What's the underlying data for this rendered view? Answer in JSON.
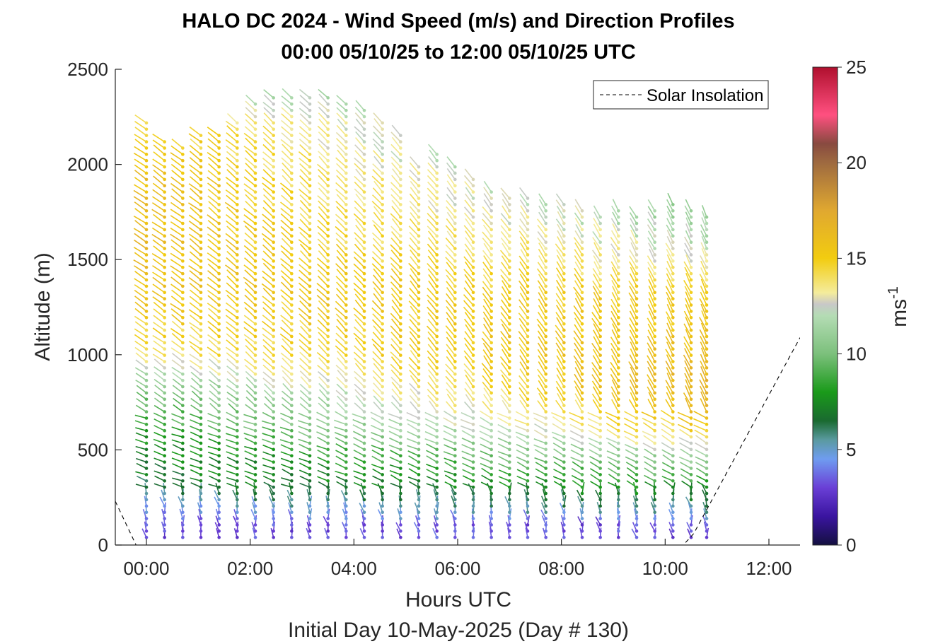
{
  "chart_data": {
    "type": "wind-barb-profile",
    "title": "HALO DC 2024 - Wind Speed (m/s) and Direction Profiles",
    "subtitle": "00:00 05/10/25 to 12:00 05/10/25  UTC",
    "xlabel": "Hours UTC",
    "footer": "Initial Day 10-May-2025 (Day # 130)",
    "ylabel": "Altitude (m)",
    "xlim": [
      -0.6,
      12.6
    ],
    "ylim": [
      0,
      2500
    ],
    "x_ticks": [
      0,
      2,
      4,
      6,
      8,
      10,
      12
    ],
    "x_tick_labels": [
      "00:00",
      "02:00",
      "04:00",
      "06:00",
      "08:00",
      "10:00",
      "12:00"
    ],
    "y_ticks": [
      0,
      500,
      1000,
      1500,
      2000,
      2500
    ],
    "y_tick_labels": [
      "0",
      "500",
      "1000",
      "1500",
      "2000",
      "2500"
    ],
    "colorbar": {
      "label": "ms-1",
      "label_main": "ms",
      "label_sup": "-1",
      "range": [
        0,
        25
      ],
      "ticks": [
        0,
        5,
        10,
        15,
        20,
        25
      ],
      "tick_labels": [
        "0",
        "5",
        "10",
        "15",
        "20",
        "25"
      ],
      "stops": [
        {
          "v": 0,
          "c": "#141040"
        },
        {
          "v": 1.5,
          "c": "#3a14a0"
        },
        {
          "v": 3,
          "c": "#6a3fd6"
        },
        {
          "v": 4.5,
          "c": "#6f9cf0"
        },
        {
          "v": 5.5,
          "c": "#5a9aa0"
        },
        {
          "v": 6.5,
          "c": "#1a6a30"
        },
        {
          "v": 8,
          "c": "#1a9a1a"
        },
        {
          "v": 10,
          "c": "#7cc07c"
        },
        {
          "v": 12,
          "c": "#b4dcb4"
        },
        {
          "v": 12.6,
          "c": "#c8c8c8"
        },
        {
          "v": 13.2,
          "c": "#f4ec9c"
        },
        {
          "v": 15,
          "c": "#f2cc10"
        },
        {
          "v": 17.5,
          "c": "#e0a830"
        },
        {
          "v": 20,
          "c": "#9e6a40"
        },
        {
          "v": 21,
          "c": "#884a40"
        },
        {
          "v": 22.5,
          "c": "#ff5080"
        },
        {
          "v": 25,
          "c": "#b0102e"
        }
      ]
    },
    "legend": {
      "entries": [
        "Solar Insolation"
      ],
      "placement": "top-right"
    },
    "solar_insolation_line": {
      "x": [
        -0.6,
        -0.2,
        0.0,
        10.35,
        10.55,
        12.6
      ],
      "y": [
        230,
        0,
        0,
        0,
        60,
        1090
      ]
    },
    "profiles": {
      "times": [
        0.0,
        0.35,
        0.7,
        1.05,
        1.4,
        1.75,
        2.1,
        2.45,
        2.8,
        3.15,
        3.5,
        3.85,
        4.2,
        4.55,
        4.9,
        5.25,
        5.6,
        5.95,
        6.3,
        6.65,
        7.0,
        7.35,
        7.7,
        8.05,
        8.4,
        8.75,
        9.1,
        9.45,
        9.8,
        10.15,
        10.5,
        10.8
      ],
      "max_altitude": [
        2240,
        2130,
        2100,
        2170,
        2180,
        2250,
        2320,
        2370,
        2380,
        2370,
        2360,
        2340,
        2310,
        2240,
        2160,
        2010,
        2060,
        2000,
        1950,
        1880,
        1850,
        1830,
        1800,
        1790,
        1760,
        1750,
        1760,
        1740,
        1770,
        1800,
        1780,
        1750
      ],
      "altitude_step_m": 33,
      "min_altitude_m": 40,
      "speed_profile_altitudes": [
        0,
        150,
        300,
        450,
        600,
        800,
        1000,
        1300,
        1600,
        1900,
        2200,
        2400
      ],
      "speed_profile_early": [
        3,
        4,
        6.5,
        7,
        8,
        10,
        14,
        15.5,
        16,
        16,
        15,
        12
      ],
      "speed_profile_late": [
        3,
        5,
        8,
        11,
        15,
        17,
        16,
        15,
        12,
        10,
        9,
        9
      ],
      "direction_note": "barbs point toward the arrival direction; segments drawn as short line plus dot"
    }
  }
}
